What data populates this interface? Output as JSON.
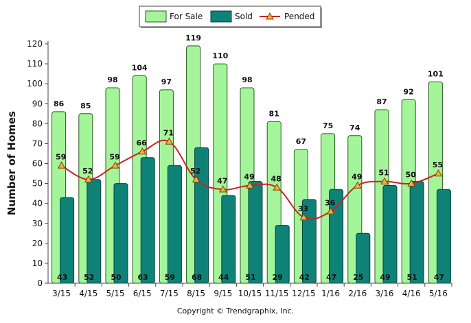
{
  "chart_data": {
    "type": "bar",
    "title": "",
    "xlabel": "",
    "ylabel": "Number of Homes",
    "ylim": [
      0,
      120
    ],
    "yticks": [
      0,
      10,
      20,
      30,
      40,
      50,
      60,
      70,
      80,
      90,
      100,
      110,
      120
    ],
    "grid": false,
    "legend_placement": "top-center",
    "categories": [
      "3/15",
      "4/15",
      "5/15",
      "6/15",
      "7/15",
      "8/15",
      "9/15",
      "10/15",
      "11/15",
      "12/15",
      "1/16",
      "2/16",
      "3/16",
      "4/16",
      "5/16"
    ],
    "series": [
      {
        "name": "For Sale",
        "kind": "bar",
        "color": "#a4f59a",
        "values": [
          86,
          85,
          98,
          104,
          97,
          119,
          110,
          98,
          81,
          67,
          75,
          74,
          87,
          92,
          101
        ]
      },
      {
        "name": "Sold",
        "kind": "bar",
        "color": "#0f8278",
        "values": [
          43,
          52,
          50,
          63,
          59,
          68,
          44,
          51,
          29,
          42,
          47,
          25,
          49,
          51,
          47
        ]
      },
      {
        "name": "Pended",
        "kind": "line",
        "color": "#cc2222",
        "values": [
          59,
          52,
          59,
          66,
          71,
          52,
          47,
          49,
          48,
          33,
          36,
          49,
          51,
          50,
          55
        ]
      }
    ],
    "footer": "Copyright © Trendgraphix, Inc."
  }
}
